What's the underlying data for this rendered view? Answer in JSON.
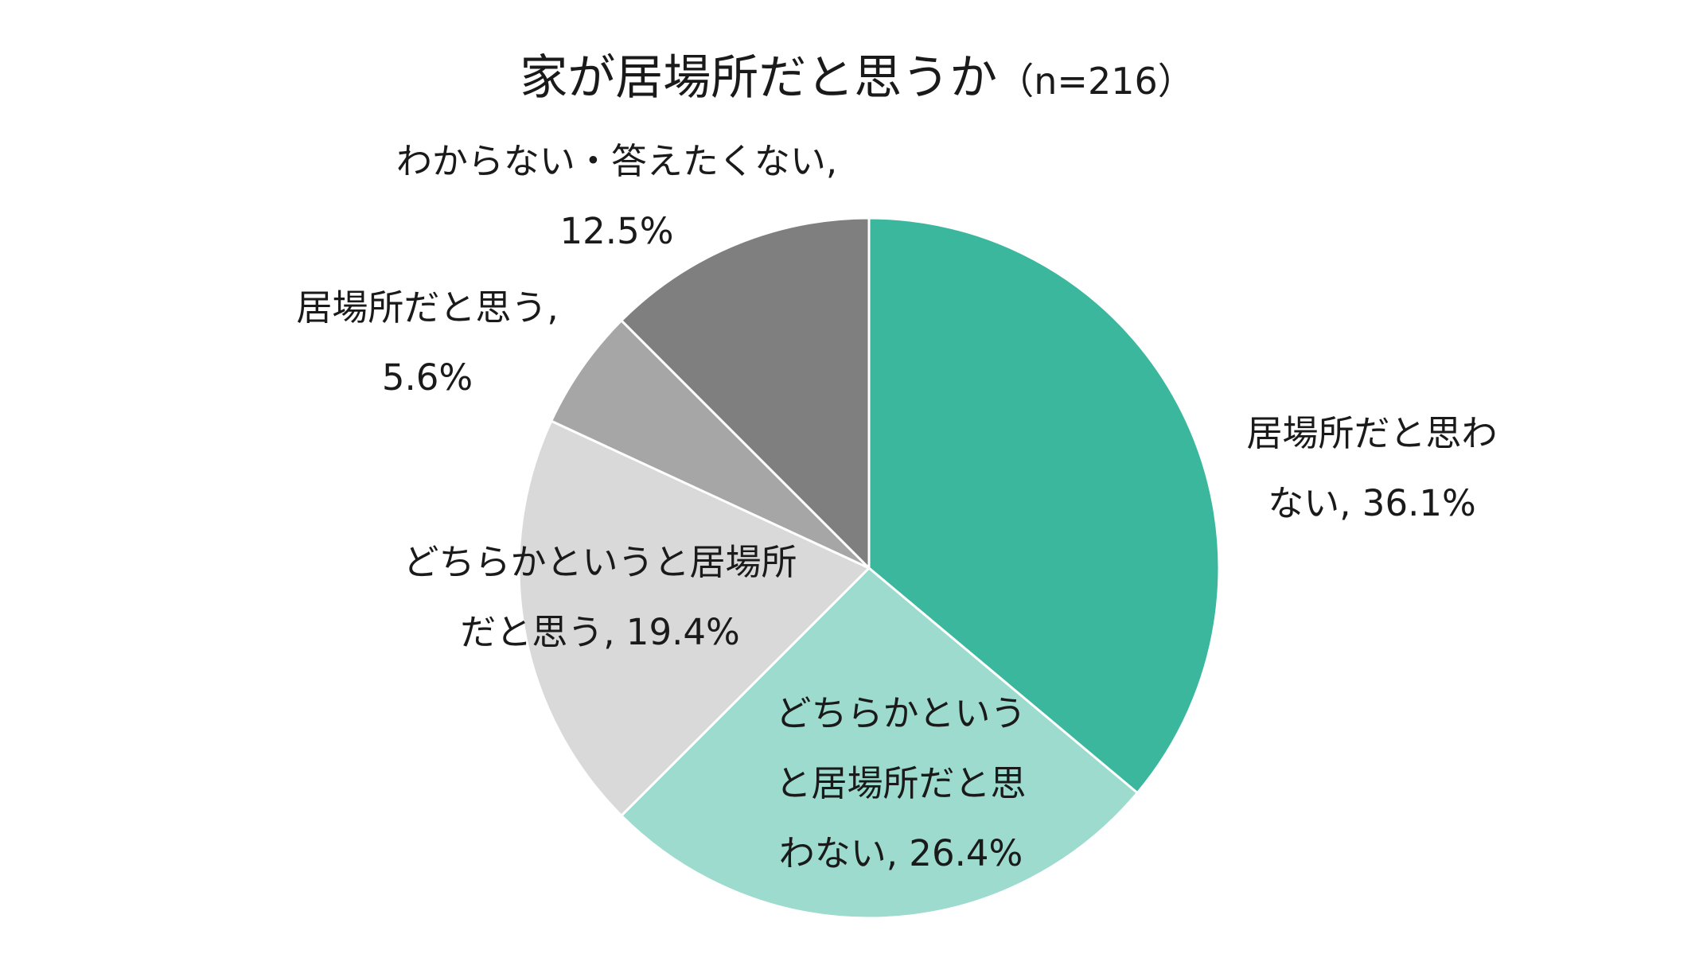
{
  "chart_data": {
    "type": "pie",
    "title": "家が居場所だと思うか",
    "subtitle": "（n=216）",
    "start_angle_deg": 0,
    "direction": "clockwise",
    "slices": [
      {
        "name": "居場所だと思わない",
        "value": 36.1,
        "label_lines": [
          "居場所だと思わ",
          "ない, 36.1%"
        ],
        "color": "#3bb79e"
      },
      {
        "name": "どちらかというと居場所だと思わない",
        "value": 26.4,
        "label_lines": [
          "どちらかという",
          "と居場所だと思",
          "わない, 26.4%"
        ],
        "color": "#9ddbce"
      },
      {
        "name": "どちらかというと居場所だと思う",
        "value": 19.4,
        "label_lines": [
          "どちらかというと居場所",
          "だと思う, 19.4%"
        ],
        "color": "#d9d9d9"
      },
      {
        "name": "居場所だと思う",
        "value": 5.6,
        "label_lines": [
          "居場所だと思う,",
          "5.6%"
        ],
        "color": "#a6a6a6"
      },
      {
        "name": "わからない・答えたくない",
        "value": 12.5,
        "label_lines": [
          "わからない・答えたくない,",
          "12.5%"
        ],
        "color": "#7f7f7f"
      }
    ]
  }
}
